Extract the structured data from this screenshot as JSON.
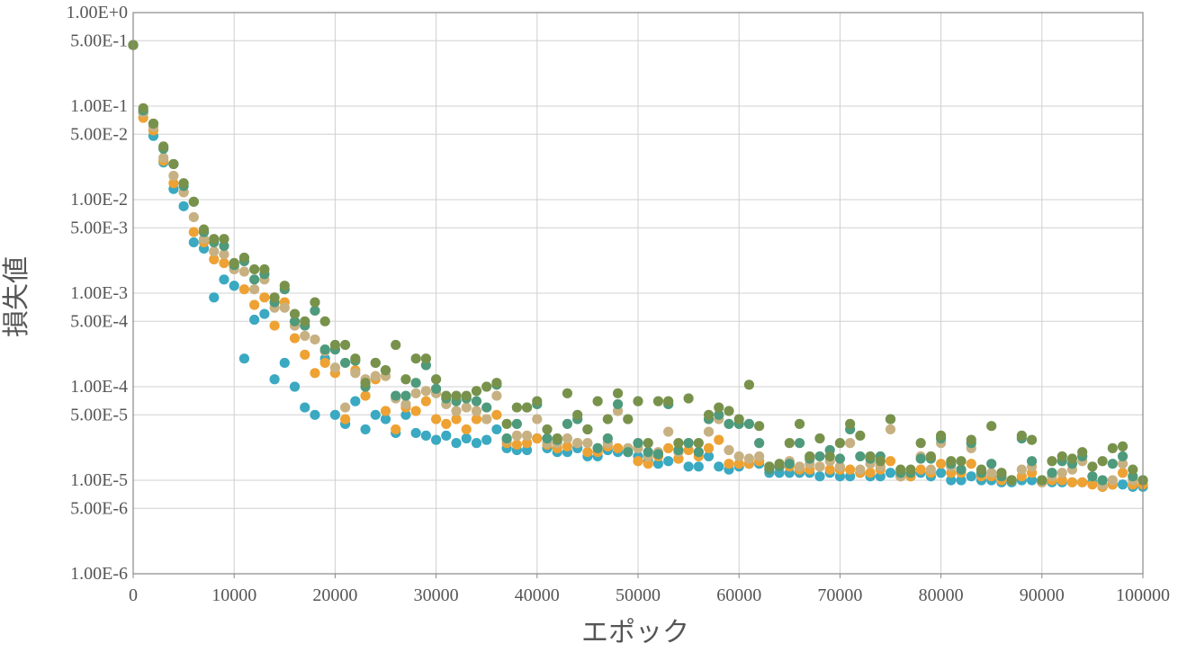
{
  "chart_data": {
    "type": "scatter",
    "xlabel": "エポック",
    "ylabel": "損失値",
    "xlim": [
      0,
      100000
    ],
    "ylim": [
      1e-06,
      1
    ],
    "yscale": "log",
    "grid": true,
    "legend": "none",
    "x_ticks": [
      0,
      10000,
      20000,
      30000,
      40000,
      50000,
      60000,
      70000,
      80000,
      90000,
      100000
    ],
    "x_tick_labels": [
      "0",
      "10000",
      "20000",
      "30000",
      "40000",
      "50000",
      "60000",
      "70000",
      "80000",
      "90000",
      "100000"
    ],
    "y_ticks": [
      1,
      0.5,
      0.1,
      0.05,
      0.01,
      0.005,
      0.001,
      0.0005,
      0.0001,
      5e-05,
      1e-05,
      5e-06,
      1e-06
    ],
    "y_tick_labels": [
      "1.00E+0",
      "5.00E-1",
      "1.00E-1",
      "5.00E-2",
      "1.00E-2",
      "5.00E-3",
      "1.00E-3",
      "5.00E-4",
      "1.00E-4",
      "5.00E-5",
      "1.00E-5",
      "5.00E-6",
      "1.00E-6"
    ],
    "x": [
      0,
      1000,
      2000,
      3000,
      4000,
      5000,
      6000,
      7000,
      8000,
      9000,
      10000,
      11000,
      12000,
      13000,
      14000,
      15000,
      16000,
      17000,
      18000,
      19000,
      20000,
      21000,
      22000,
      23000,
      24000,
      25000,
      26000,
      27000,
      28000,
      29000,
      30000,
      31000,
      32000,
      33000,
      34000,
      35000,
      36000,
      37000,
      38000,
      39000,
      40000,
      41000,
      42000,
      43000,
      44000,
      45000,
      46000,
      47000,
      48000,
      49000,
      50000,
      51000,
      52000,
      53000,
      54000,
      55000,
      56000,
      57000,
      58000,
      59000,
      60000,
      61000,
      62000,
      63000,
      64000,
      65000,
      66000,
      67000,
      68000,
      69000,
      70000,
      71000,
      72000,
      73000,
      74000,
      75000,
      76000,
      77000,
      78000,
      79000,
      80000,
      81000,
      82000,
      83000,
      84000,
      85000,
      86000,
      87000,
      88000,
      89000,
      90000,
      91000,
      92000,
      93000,
      94000,
      95000,
      96000,
      97000,
      98000,
      99000,
      100000
    ],
    "series": [
      {
        "color": "#3aa9c1",
        "values": [
          0.45,
          0.085,
          0.048,
          0.025,
          0.013,
          0.0085,
          0.0035,
          0.003,
          0.0009,
          0.0014,
          0.0012,
          0.0002,
          0.00052,
          0.0006,
          0.00012,
          0.00018,
          0.0001,
          6e-05,
          5e-05,
          0.0002,
          5e-05,
          4e-05,
          7e-05,
          3.5e-05,
          5e-05,
          4.5e-05,
          3.2e-05,
          5e-05,
          3.2e-05,
          3e-05,
          2.7e-05,
          3e-05,
          2.5e-05,
          2.8e-05,
          2.5e-05,
          2.7e-05,
          3.5e-05,
          2.2e-05,
          2.1e-05,
          2.1e-05,
          2.8e-05,
          2.2e-05,
          2e-05,
          2e-05,
          2.2e-05,
          1.8e-05,
          1.8e-05,
          2.1e-05,
          2e-05,
          2e-05,
          1.8e-05,
          1.6e-05,
          1.5e-05,
          1.6e-05,
          1.7e-05,
          1.4e-05,
          1.4e-05,
          1.8e-05,
          1.4e-05,
          1.3e-05,
          1.4e-05,
          1.5e-05,
          1.5e-05,
          1.2e-05,
          1.2e-05,
          1.2e-05,
          1.2e-05,
          1.2e-05,
          1.1e-05,
          1.2e-05,
          1.1e-05,
          1.1e-05,
          1.2e-05,
          1.1e-05,
          1.1e-05,
          1.2e-05,
          1.1e-05,
          1.1e-05,
          1.2e-05,
          1.1e-05,
          1.2e-05,
          1e-05,
          1e-05,
          1.1e-05,
          1e-05,
          1e-05,
          9.5e-06,
          9.5e-06,
          1e-05,
          1e-05,
          9.5e-06,
          9.5e-06,
          9.5e-06,
          9.5e-06,
          9.5e-06,
          9.5e-06,
          8.5e-06,
          9e-06,
          9e-06,
          8.5e-06,
          8.5e-06
        ]
      },
      {
        "color": "#eea233",
        "values": [
          0.45,
          0.075,
          0.055,
          0.026,
          0.015,
          0.012,
          0.0045,
          0.0035,
          0.0023,
          0.0021,
          0.0019,
          0.0011,
          0.00075,
          0.0009,
          0.00045,
          0.0008,
          0.00033,
          0.00022,
          0.00014,
          0.00018,
          0.00014,
          4.5e-05,
          0.00015,
          8e-05,
          0.00012,
          5.5e-05,
          3.5e-05,
          6e-05,
          5.5e-05,
          7e-05,
          4.5e-05,
          4e-05,
          4.5e-05,
          3.5e-05,
          4.5e-05,
          4.5e-05,
          5e-05,
          2.5e-05,
          2.4e-05,
          2.5e-05,
          2.8e-05,
          2.4e-05,
          2.2e-05,
          2.3e-05,
          2.5e-05,
          2e-05,
          2e-05,
          2.3e-05,
          2.2e-05,
          2.1e-05,
          1.6e-05,
          1.5e-05,
          1.8e-05,
          2.2e-05,
          1.7e-05,
          2.1e-05,
          1.8e-05,
          2.2e-05,
          2.7e-05,
          1.5e-05,
          1.5e-05,
          1.5e-05,
          1.6e-05,
          1.3e-05,
          1.4e-05,
          1.4e-05,
          1.3e-05,
          1.3e-05,
          1.4e-05,
          1.3e-05,
          1.3e-05,
          1.3e-05,
          1.2e-05,
          1.2e-05,
          1.3e-05,
          1.6e-05,
          1.1e-05,
          1.1e-05,
          1.3e-05,
          1.2e-05,
          1.5e-05,
          1.2e-05,
          1.2e-05,
          1.5e-05,
          1.1e-05,
          1.1e-05,
          1e-05,
          1e-05,
          1.1e-05,
          1.2e-05,
          9.5e-06,
          1e-05,
          1e-05,
          9.5e-06,
          9.5e-06,
          9e-06,
          8.5e-06,
          9e-06,
          1.2e-05,
          9e-06,
          9e-06
        ]
      },
      {
        "color": "#c7b183",
        "values": [
          0.45,
          0.085,
          0.06,
          0.028,
          0.018,
          0.012,
          0.0065,
          0.0038,
          0.0028,
          0.0026,
          0.0018,
          0.0017,
          0.0011,
          0.0014,
          0.0007,
          0.0007,
          0.00045,
          0.00035,
          0.00032,
          0.00024,
          0.00016,
          6e-05,
          0.00014,
          0.00012,
          0.00013,
          0.00013,
          7.5e-05,
          6.5e-05,
          8.5e-05,
          9e-05,
          8.5e-05,
          6.5e-05,
          5.5e-05,
          6e-05,
          5.5e-05,
          4.5e-05,
          8e-05,
          2.7e-05,
          3e-05,
          3e-05,
          4.5e-05,
          2.5e-05,
          2.5e-05,
          2.8e-05,
          2.5e-05,
          2.5e-05,
          2.2e-05,
          2.5e-05,
          5.5e-05,
          2.2e-05,
          2.2e-05,
          1.8e-05,
          2e-05,
          3.3e-05,
          2e-05,
          2.5e-05,
          2e-05,
          3.3e-05,
          4.5e-05,
          2.1e-05,
          1.8e-05,
          1.7e-05,
          1.8e-05,
          1.4e-05,
          1.4e-05,
          1.6e-05,
          1.4e-05,
          1.5e-05,
          1.4e-05,
          1.6e-05,
          1.4e-05,
          2.5e-05,
          1.3e-05,
          1.5e-05,
          1.4e-05,
          3.5e-05,
          1.1e-05,
          1.2e-05,
          1.8e-05,
          1.3e-05,
          2.5e-05,
          1.4e-05,
          1.3e-05,
          2.2e-05,
          1.2e-05,
          1.2e-05,
          1.1e-05,
          1e-05,
          1.3e-05,
          1.4e-05,
          9.5e-06,
          1.1e-05,
          1.2e-05,
          1.3e-05,
          1.6e-05,
          1.1e-05,
          9e-06,
          1e-05,
          1.5e-05,
          1e-05,
          1e-05
        ]
      },
      {
        "color": "#4e9a7c",
        "values": [
          0.45,
          0.09,
          0.065,
          0.035,
          0.024,
          0.014,
          0.0095,
          0.0045,
          0.0035,
          0.0032,
          0.002,
          0.0022,
          0.0014,
          0.0016,
          0.0008,
          0.0011,
          0.0005,
          0.00045,
          0.00065,
          0.00025,
          0.00025,
          0.00018,
          0.00019,
          0.0001,
          0.00018,
          0.00015,
          8e-05,
          8e-05,
          0.00011,
          0.00017,
          9.5e-05,
          7.5e-05,
          7e-05,
          7.5e-05,
          7e-05,
          6e-05,
          0.000105,
          2.8e-05,
          4e-05,
          6e-05,
          6.5e-05,
          2.8e-05,
          2.7e-05,
          4e-05,
          4.5e-05,
          3.5e-05,
          2.2e-05,
          2.8e-05,
          6.5e-05,
          2e-05,
          2.5e-05,
          2e-05,
          1.9e-05,
          6.5e-05,
          2.1e-05,
          2.5e-05,
          2e-05,
          4.5e-05,
          5e-05,
          4e-05,
          4e-05,
          4e-05,
          2.5e-05,
          1.3e-05,
          1.4e-05,
          1.5e-05,
          2.5e-05,
          1.7e-05,
          1.8e-05,
          2.1e-05,
          1.7e-05,
          3.5e-05,
          1.8e-05,
          1.7e-05,
          1.8e-05,
          4.5e-05,
          1.2e-05,
          1.2e-05,
          1.7e-05,
          1.7e-05,
          2.8e-05,
          1.5e-05,
          1.3e-05,
          2.5e-05,
          1.2e-05,
          1.5e-05,
          1.1e-05,
          1e-05,
          2.8e-05,
          1.6e-05,
          1e-05,
          1.2e-05,
          1.6e-05,
          1.5e-05,
          1.8e-05,
          1.1e-05,
          1e-05,
          1.5e-05,
          1.8e-05,
          1.1e-05,
          1e-05
        ]
      },
      {
        "color": "#78924c",
        "values": [
          0.45,
          0.095,
          0.065,
          0.037,
          0.024,
          0.015,
          0.0095,
          0.0048,
          0.0038,
          0.0038,
          0.0021,
          0.0024,
          0.0018,
          0.0018,
          0.0009,
          0.0012,
          0.0006,
          0.0005,
          0.0008,
          0.0005,
          0.00028,
          0.00028,
          0.0002,
          0.00011,
          0.00018,
          0.00015,
          0.00028,
          0.00012,
          0.0002,
          0.0002,
          0.00012,
          8e-05,
          8e-05,
          8e-05,
          9e-05,
          0.0001,
          0.00011,
          4e-05,
          6e-05,
          6e-05,
          7e-05,
          3.5e-05,
          2.8e-05,
          8.5e-05,
          5e-05,
          3.5e-05,
          7e-05,
          4.5e-05,
          8.5e-05,
          4.5e-05,
          7e-05,
          2.5e-05,
          7e-05,
          7e-05,
          2.5e-05,
          7.5e-05,
          2.5e-05,
          5e-05,
          6e-05,
          5.5e-05,
          4.5e-05,
          0.000105,
          3.8e-05,
          1.4e-05,
          1.5e-05,
          2.5e-05,
          4e-05,
          1.8e-05,
          2.8e-05,
          1.8e-05,
          2.5e-05,
          4e-05,
          3e-05,
          1.8e-05,
          1.6e-05,
          4.5e-05,
          1.3e-05,
          1.3e-05,
          2.5e-05,
          1.8e-05,
          3e-05,
          1.6e-05,
          1.6e-05,
          2.7e-05,
          1.3e-05,
          3.8e-05,
          1.2e-05,
          1e-05,
          3e-05,
          2.7e-05,
          1e-05,
          1.6e-05,
          1.8e-05,
          1.7e-05,
          2e-05,
          1.4e-05,
          1.6e-05,
          2.2e-05,
          2.3e-05,
          1.3e-05,
          1e-05
        ]
      }
    ]
  }
}
